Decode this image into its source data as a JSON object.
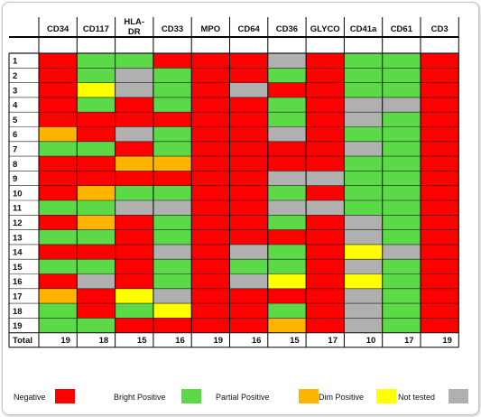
{
  "chart_data": {
    "type": "heatmap",
    "columns": [
      "CD34",
      "CD117",
      "HLA-DR",
      "CD33",
      "MPO",
      "CD64",
      "CD36",
      "GLYCO",
      "CD41a",
      "CD61",
      "CD3"
    ],
    "rows": [
      "1",
      "2",
      "3",
      "4",
      "5",
      "6",
      "7",
      "8",
      "9",
      "10",
      "11",
      "12",
      "13",
      "14",
      "15",
      "16",
      "17",
      "18",
      "19"
    ],
    "categories": {
      "N": {
        "label": "Negative",
        "color": "#ff0000"
      },
      "B": {
        "label": "Bright Positive",
        "color": "#5cd946"
      },
      "P": {
        "label": "Partial Positive",
        "color": "#ffb400"
      },
      "D": {
        "label": "Dim Positive",
        "color": "#ffff00"
      },
      "T": {
        "label": "Not tested",
        "color": "#b0b0b0"
      }
    },
    "legend_order": [
      "N",
      "B",
      "P",
      "D",
      "T"
    ],
    "cells": [
      [
        "N",
        "B",
        "B",
        "N",
        "N",
        "N",
        "T",
        "N",
        "B",
        "B",
        "N"
      ],
      [
        "N",
        "B",
        "T",
        "B",
        "N",
        "N",
        "B",
        "N",
        "B",
        "B",
        "N"
      ],
      [
        "N",
        "D",
        "T",
        "B",
        "N",
        "T",
        "N",
        "N",
        "B",
        "B",
        "N"
      ],
      [
        "N",
        "B",
        "N",
        "B",
        "N",
        "N",
        "B",
        "N",
        "T",
        "T",
        "N"
      ],
      [
        "N",
        "N",
        "N",
        "N",
        "N",
        "N",
        "B",
        "N",
        "T",
        "B",
        "N"
      ],
      [
        "P",
        "N",
        "T",
        "B",
        "N",
        "N",
        "T",
        "N",
        "B",
        "B",
        "N"
      ],
      [
        "B",
        "B",
        "N",
        "B",
        "N",
        "N",
        "N",
        "N",
        "T",
        "B",
        "N"
      ],
      [
        "N",
        "N",
        "P",
        "P",
        "N",
        "N",
        "N",
        "N",
        "B",
        "B",
        "N"
      ],
      [
        "N",
        "N",
        "N",
        "N",
        "N",
        "N",
        "T",
        "T",
        "B",
        "B",
        "N"
      ],
      [
        "N",
        "P",
        "B",
        "B",
        "N",
        "N",
        "B",
        "N",
        "B",
        "B",
        "N"
      ],
      [
        "B",
        "B",
        "T",
        "T",
        "N",
        "N",
        "T",
        "T",
        "B",
        "B",
        "N"
      ],
      [
        "N",
        "P",
        "N",
        "B",
        "N",
        "N",
        "B",
        "N",
        "T",
        "B",
        "N"
      ],
      [
        "B",
        "B",
        "N",
        "B",
        "N",
        "N",
        "N",
        "N",
        "T",
        "B",
        "N"
      ],
      [
        "N",
        "N",
        "N",
        "T",
        "N",
        "T",
        "B",
        "N",
        "D",
        "T",
        "N"
      ],
      [
        "B",
        "B",
        "N",
        "B",
        "N",
        "B",
        "B",
        "N",
        "T",
        "B",
        "N"
      ],
      [
        "N",
        "T",
        "N",
        "B",
        "N",
        "T",
        "D",
        "N",
        "D",
        "B",
        "N"
      ],
      [
        "P",
        "N",
        "D",
        "T",
        "N",
        "N",
        "N",
        "N",
        "T",
        "B",
        "N"
      ],
      [
        "B",
        "N",
        "B",
        "D",
        "N",
        "N",
        "B",
        "N",
        "T",
        "B",
        "N"
      ],
      [
        "B",
        "B",
        "N",
        "N",
        "N",
        "N",
        "P",
        "N",
        "T",
        "B",
        "N"
      ]
    ],
    "total_label": "Total",
    "totals": [
      19,
      18,
      15,
      16,
      19,
      16,
      15,
      17,
      10,
      17,
      19
    ]
  }
}
